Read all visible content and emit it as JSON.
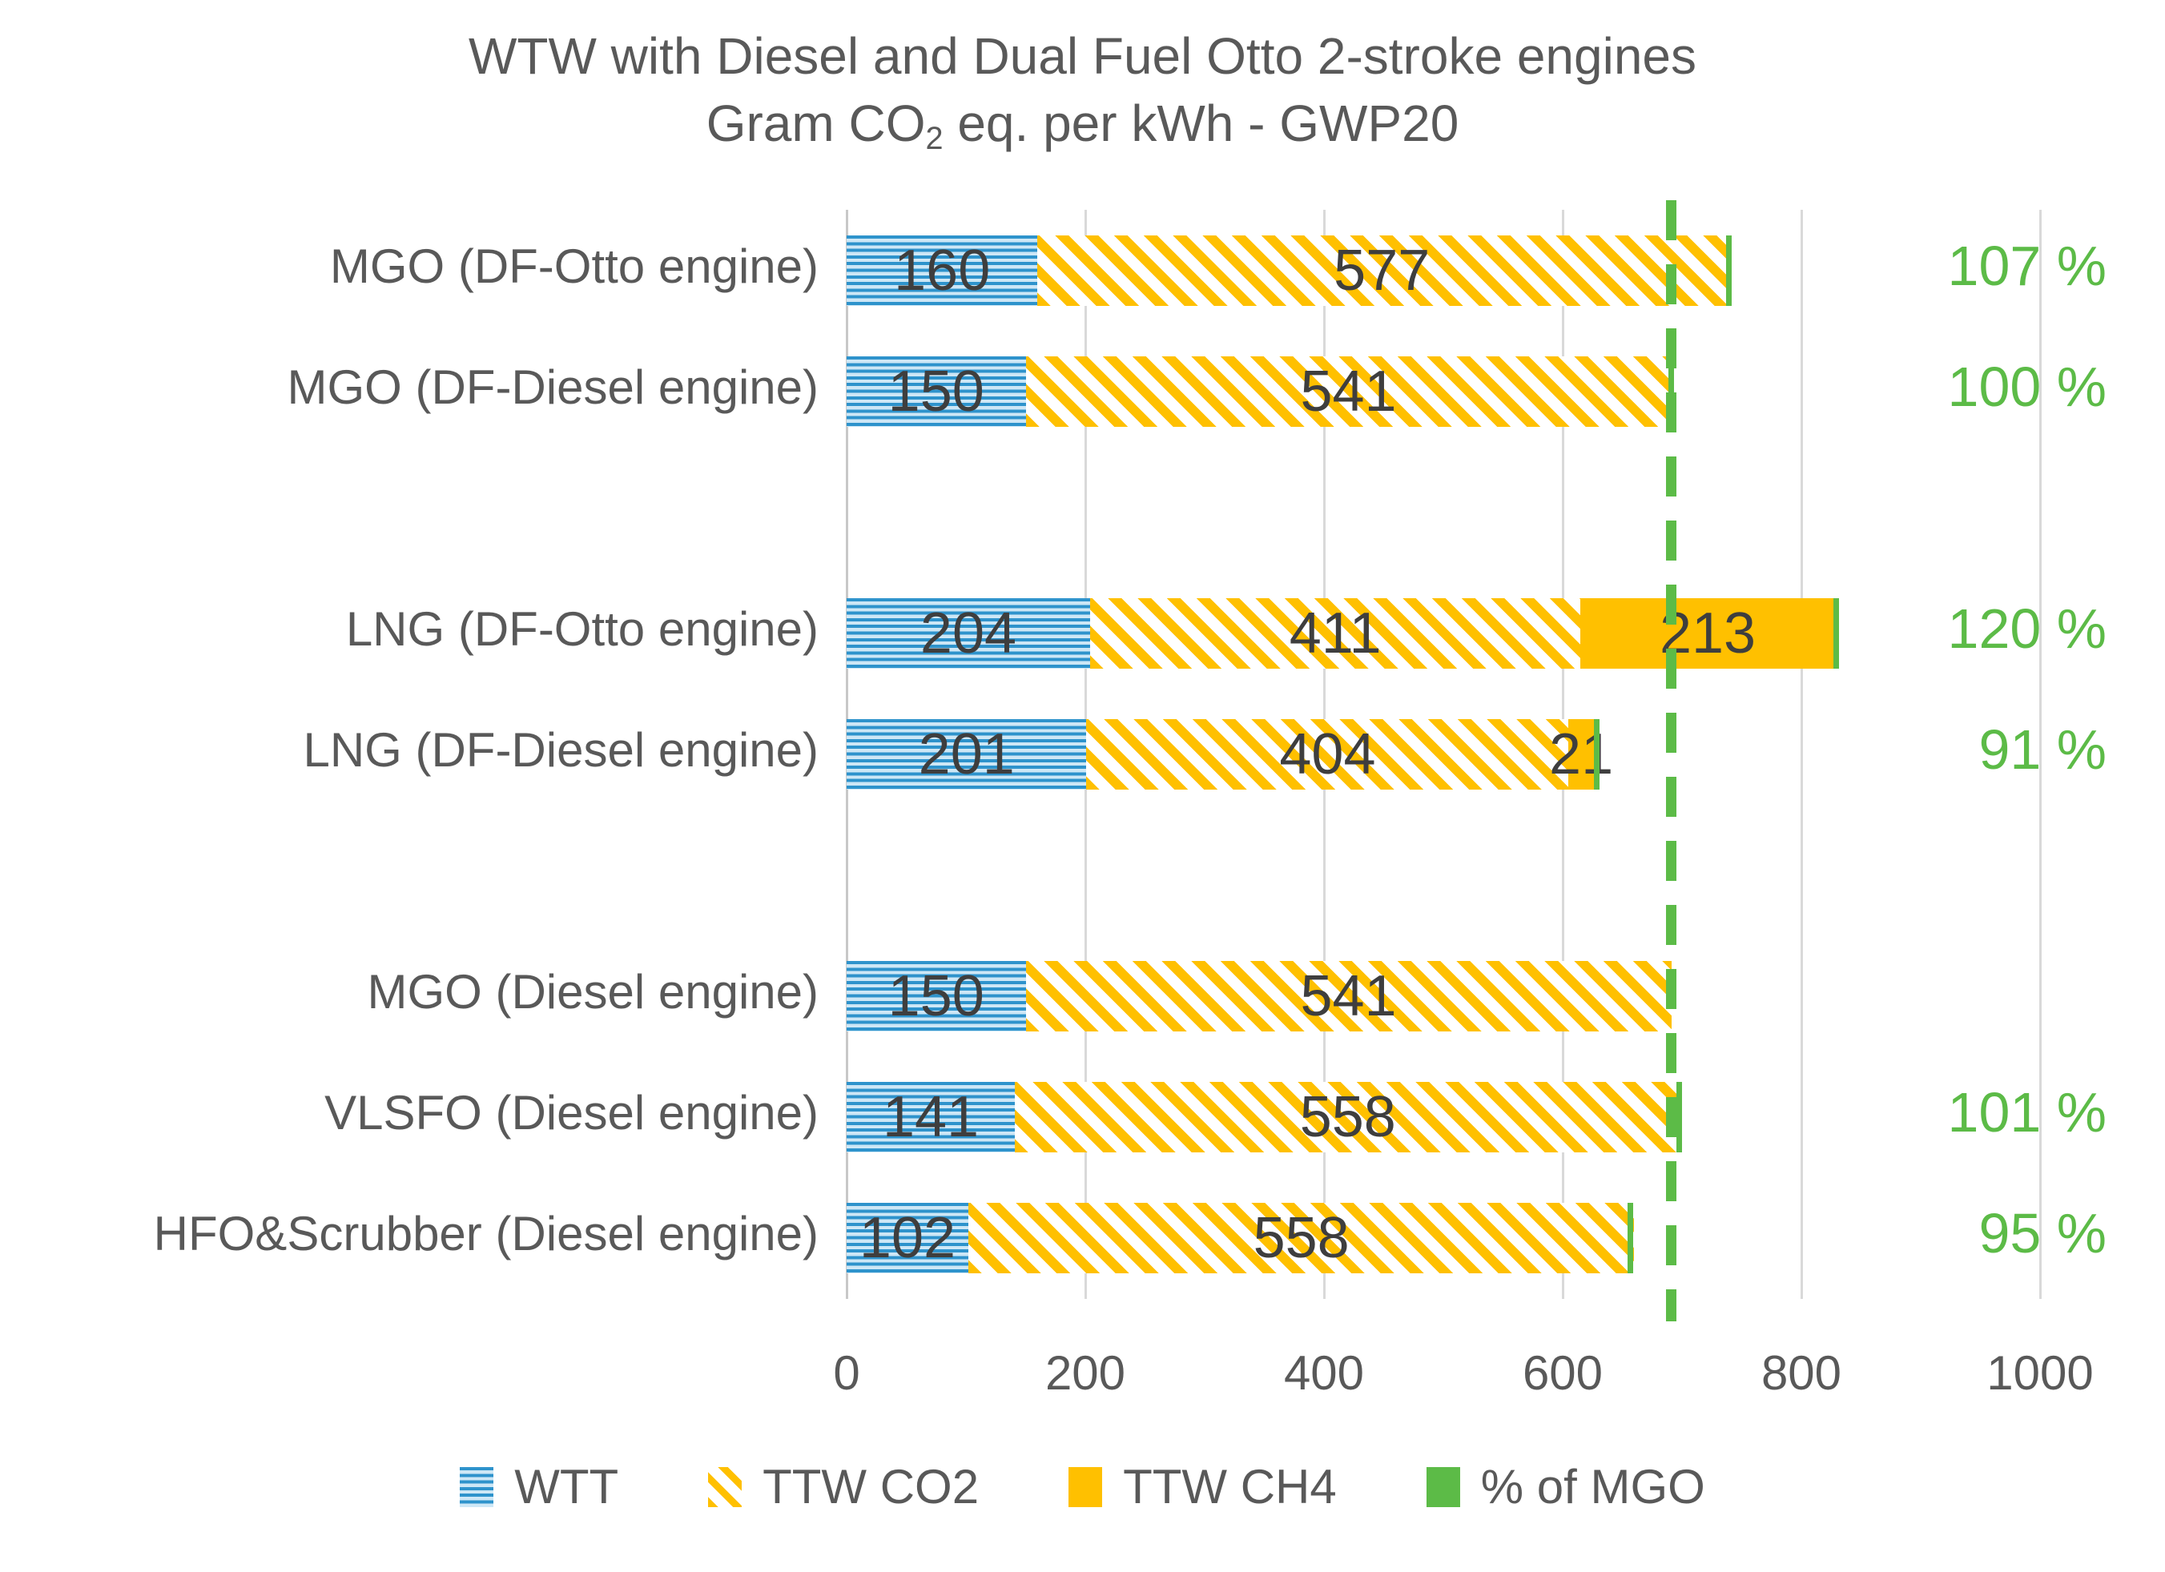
{
  "title": {
    "line1": "WTW with Diesel and Dual Fuel Otto 2-stroke engines",
    "line2_prefix": "Gram CO",
    "line2_sub": "2",
    "line2_suffix": " eq. per kWh - GWP20"
  },
  "colors": {
    "wtt_blue": "#2E93CC",
    "wtt_blue_light": "#CDE7F6",
    "ttw_yellow": "#FFC000",
    "marker_green": "#5CBB47",
    "text_gray": "#595959",
    "value_text": "#3E3E3E",
    "gridline": "#D9D9D9"
  },
  "chart_data": {
    "type": "bar",
    "orientation": "horizontal",
    "stacked": true,
    "title": "WTW with Diesel and Dual Fuel Otto 2-stroke engines",
    "subtitle": "Gram CO2 eq. per kWh - GWP20",
    "xlabel": "",
    "ylabel": "",
    "xlim": [
      0,
      1000
    ],
    "x_ticks": [
      0,
      200,
      400,
      600,
      800,
      1000
    ],
    "grid": true,
    "legend_position": "bottom",
    "reference_line": {
      "value": 691,
      "style": "dashed",
      "color": "#5CBB47",
      "meaning": "MGO (DF-Diesel engine) total = 100 %"
    },
    "series_names": [
      "WTT",
      "TTW CO2",
      "TTW CH4",
      "% of MGO"
    ],
    "rows": [
      {
        "label": "MGO (DF-Otto engine)",
        "wtt": 160,
        "ttw_co2": 577,
        "ttw_ch4": 0,
        "pct_of_mgo": 107,
        "pct_label": "107 %"
      },
      {
        "label": "MGO (DF-Diesel engine)",
        "wtt": 150,
        "ttw_co2": 541,
        "ttw_ch4": 0,
        "pct_of_mgo": 100,
        "pct_label": "100 %"
      },
      {
        "spacer": true
      },
      {
        "label": "LNG (DF-Otto engine)",
        "wtt": 204,
        "ttw_co2": 411,
        "ttw_ch4": 213,
        "pct_of_mgo": 120,
        "pct_label": "120 %"
      },
      {
        "label": "LNG (DF-Diesel engine)",
        "wtt": 201,
        "ttw_co2": 404,
        "ttw_ch4": 21,
        "pct_of_mgo": 91,
        "pct_label": "91 %"
      },
      {
        "spacer": true
      },
      {
        "label": "MGO (Diesel engine)",
        "wtt": 150,
        "ttw_co2": 541,
        "ttw_ch4": 0,
        "pct_of_mgo": null,
        "pct_label": null
      },
      {
        "label": "VLSFO (Diesel engine)",
        "wtt": 141,
        "ttw_co2": 558,
        "ttw_ch4": 0,
        "pct_of_mgo": 101,
        "pct_label": "101 %"
      },
      {
        "label": "HFO&Scrubber (Diesel engine)",
        "wtt": 102,
        "ttw_co2": 558,
        "ttw_ch4": 0,
        "pct_of_mgo": 95,
        "pct_label": "95 %"
      }
    ],
    "legend": [
      {
        "label": "WTT",
        "swatch": "wtt"
      },
      {
        "label": "TTW CO2",
        "swatch": "co2"
      },
      {
        "label": "TTW CH4",
        "swatch": "ch4"
      },
      {
        "label": "% of MGO",
        "swatch": "pct"
      }
    ]
  }
}
